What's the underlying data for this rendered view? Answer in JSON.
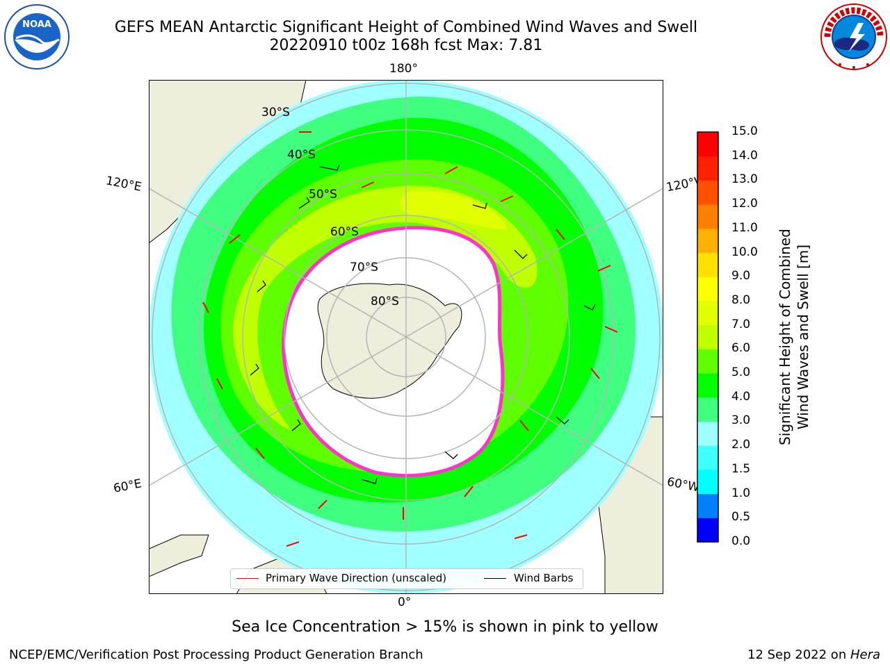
{
  "title": {
    "line1": "GEFS MEAN Antarctic Significant Height of Combined Wind Waves and Swell",
    "line2": "20220910 t00z 168h fcst   Max: 7.81"
  },
  "longitude_labels": {
    "top": "180°",
    "bottom": "0°",
    "upper_left": "120°E",
    "upper_right": "120°W",
    "lower_left": "60°E",
    "lower_right": "60°W"
  },
  "latitude_labels": [
    "30°S",
    "40°S",
    "50°S",
    "60°S",
    "70°S",
    "80°S"
  ],
  "legend": {
    "wave_label": "Primary Wave Direction (unscaled)",
    "barb_label": "Wind Barbs",
    "wave_color": "#ff0000",
    "barb_color": "#000000"
  },
  "colorbar": {
    "label_line1": "Significant Height of Combined",
    "label_line2": "Wind Waves and Swell [m]",
    "ticks": [
      "0.0",
      "0.5",
      "1.0",
      "1.5",
      "2.0",
      "3.0",
      "4.0",
      "5.0",
      "6.0",
      "7.0",
      "8.0",
      "9.0",
      "10.0",
      "11.0",
      "12.0",
      "13.0",
      "14.0",
      "15.0"
    ],
    "colors": [
      "#0000ff",
      "#0080ff",
      "#00ffff",
      "#40ffff",
      "#a0ffff",
      "#40ff80",
      "#00ff00",
      "#60ff00",
      "#c0ff00",
      "#e0ff00",
      "#ffff00",
      "#ffe000",
      "#ffb000",
      "#ff8000",
      "#ff5000",
      "#ff2000",
      "#ff0000"
    ]
  },
  "caption": "Sea Ice Concentration > 15% is shown in pink to yellow",
  "footer": {
    "left": "NCEP/EMC/Verification Post Processing Product Generation Branch",
    "right_date": "12 Sep 2022 on ",
    "right_system": "Hera"
  },
  "colors": {
    "land": "#eeeedd",
    "ice_edge": "#ff33cc",
    "ice_fill": "#ffffff",
    "grid": "#b4b4b4"
  }
}
